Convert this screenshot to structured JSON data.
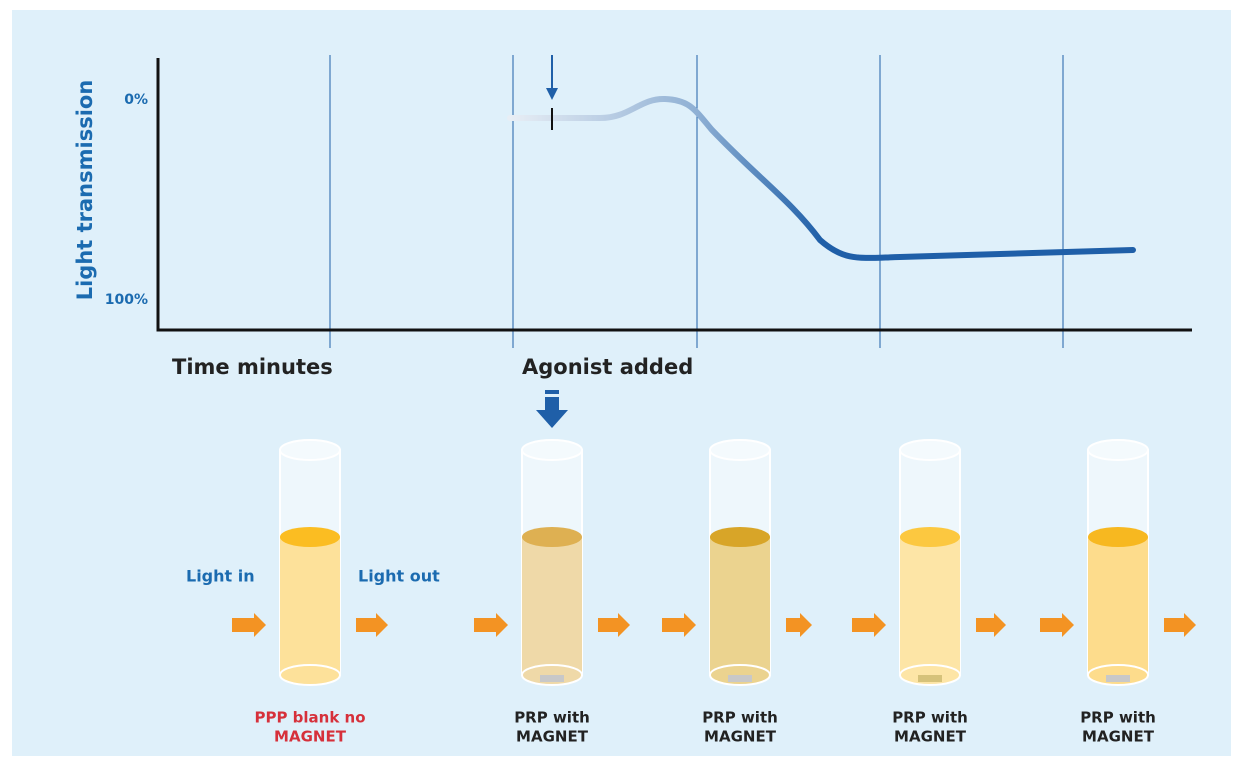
{
  "y_axis": {
    "label": "Light  transmission",
    "top": "0%",
    "bottom": "100%"
  },
  "x_axis": {
    "label": "Time minutes",
    "event": "Agonist added"
  },
  "light": {
    "in": "Light in",
    "out": "Light out"
  },
  "tubes": [
    {
      "lines": [
        "PPP blank no",
        "MAGNET"
      ]
    },
    {
      "lines": [
        "PRP with",
        "MAGNET"
      ]
    },
    {
      "lines": [
        "PRP with",
        "MAGNET"
      ]
    },
    {
      "lines": [
        "PRP with",
        "MAGNET"
      ]
    },
    {
      "lines": [
        "PRP with",
        "MAGNET"
      ]
    }
  ]
}
